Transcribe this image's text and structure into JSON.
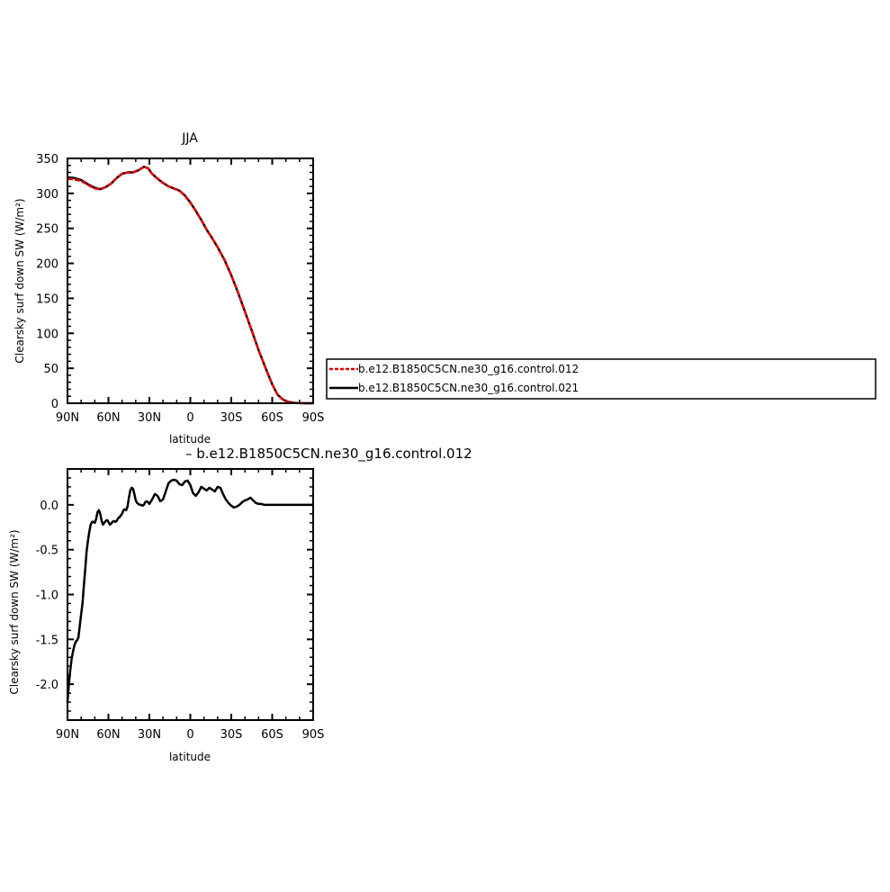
{
  "chart_data": [
    {
      "type": "line",
      "title": "JJA",
      "xlabel": "latitude",
      "ylabel": "Clearsky surf down SW (W/m²)",
      "xlim": [
        90,
        -90
      ],
      "ylim": [
        0,
        350
      ],
      "xticks": [
        90,
        60,
        30,
        0,
        -30,
        -60,
        -90
      ],
      "xtick_labels": [
        "90N",
        "60N",
        "30N",
        "0",
        "30S",
        "60S",
        "90S"
      ],
      "yticks": [
        0,
        50,
        100,
        150,
        200,
        250,
        300,
        350
      ],
      "ytick_labels": [
        "0",
        "50",
        "100",
        "150",
        "200",
        "250",
        "300",
        "350"
      ],
      "legend": "right",
      "series": [
        {
          "name": "b.e12.B1850C5CN.ne30_g16.control.012",
          "color": "#e00000",
          "dash": "dashed",
          "x": [
            90,
            85,
            80,
            75,
            70,
            66,
            62,
            58,
            54,
            50,
            46,
            42,
            38,
            34,
            31,
            28,
            24,
            20,
            16,
            12,
            8,
            4,
            0,
            -4,
            -8,
            -12,
            -16,
            -20,
            -25,
            -30,
            -35,
            -40,
            -45,
            -50,
            -55,
            -60,
            -64,
            -68,
            -72,
            -75,
            -78,
            -81,
            -84,
            -87,
            -90
          ],
          "values": [
            321,
            320,
            318,
            312,
            307,
            306,
            309,
            314,
            322,
            328,
            330,
            330,
            333,
            338,
            336,
            328,
            321,
            315,
            310,
            307,
            304,
            297,
            287,
            275,
            262,
            248,
            236,
            223,
            205,
            183,
            158,
            131,
            104,
            76,
            51,
            27,
            12,
            5,
            2,
            0.8,
            0.3,
            0.1,
            0,
            0,
            0
          ]
        },
        {
          "name": "b.e12.B1850C5CN.ne30_g16.control.021",
          "color": "#000000",
          "dash": "solid",
          "x": [
            90,
            85,
            80,
            75,
            70,
            66,
            62,
            58,
            54,
            50,
            46,
            42,
            38,
            34,
            31,
            28,
            24,
            20,
            16,
            12,
            8,
            4,
            0,
            -4,
            -8,
            -12,
            -16,
            -20,
            -25,
            -30,
            -35,
            -40,
            -45,
            -50,
            -55,
            -60,
            -64,
            -68,
            -72,
            -75,
            -78,
            -81,
            -84,
            -87,
            -90
          ],
          "values": [
            323,
            322,
            319,
            313,
            308,
            306,
            309,
            314,
            322,
            328,
            330,
            330,
            333,
            338,
            336,
            328,
            321,
            315,
            310,
            307,
            304,
            297,
            287,
            275,
            262,
            248,
            236,
            223,
            205,
            183,
            158,
            131,
            104,
            76,
            51,
            27,
            12,
            5,
            2,
            0.8,
            0.3,
            0.1,
            0,
            0,
            0
          ]
        }
      ]
    },
    {
      "type": "line",
      "title": "– b.e12.B1850C5CN.ne30_g16.control.012",
      "xlabel": "latitude",
      "ylabel": "Clearsky surf down SW (W/m²)",
      "xlim": [
        90,
        -90
      ],
      "ylim": [
        -2.4,
        0.4
      ],
      "xticks": [
        90,
        60,
        30,
        0,
        -30,
        -60,
        -90
      ],
      "xtick_labels": [
        "90N",
        "60N",
        "30N",
        "0",
        "30S",
        "60S",
        "90S"
      ],
      "yticks": [
        -2.0,
        -1.5,
        -1.0,
        -0.5,
        0.0
      ],
      "ytick_labels": [
        "-2.0",
        "-1.5",
        "-1.0",
        "-0.5",
        "0.0"
      ],
      "series": [
        {
          "name": "",
          "color": "#000000",
          "dash": "solid",
          "x": [
            90,
            89,
            88,
            87,
            86,
            85,
            84,
            83,
            82,
            81,
            80,
            79,
            78,
            77,
            76,
            75,
            74,
            73,
            72,
            71,
            70,
            69,
            68,
            67,
            66,
            65,
            64,
            63,
            62,
            61,
            60,
            59,
            58,
            57,
            56,
            55,
            54,
            53,
            52,
            51,
            50,
            49,
            48,
            47,
            46,
            45,
            44,
            43,
            42,
            41,
            40,
            39,
            38,
            37,
            36,
            35,
            34,
            33,
            32,
            31,
            30,
            28,
            26,
            24,
            22,
            20,
            18,
            16,
            14,
            12,
            10,
            8,
            6,
            4,
            2,
            0,
            -2,
            -4,
            -6,
            -8,
            -10,
            -12,
            -14,
            -16,
            -18,
            -20,
            -22,
            -24,
            -26,
            -28,
            -30,
            -32,
            -34,
            -36,
            -38,
            -40,
            -42,
            -44,
            -46,
            -48,
            -50,
            -52,
            -54,
            -56,
            -58,
            -60,
            -62,
            -64,
            -66,
            -68,
            -70,
            -72,
            -75,
            -80,
            -85,
            -90
          ],
          "values": [
            -2.2,
            -2.0,
            -1.85,
            -1.72,
            -1.64,
            -1.57,
            -1.53,
            -1.51,
            -1.48,
            -1.35,
            -1.22,
            -1.1,
            -0.9,
            -0.72,
            -0.52,
            -0.4,
            -0.3,
            -0.22,
            -0.19,
            -0.19,
            -0.2,
            -0.16,
            -0.08,
            -0.06,
            -0.1,
            -0.18,
            -0.22,
            -0.2,
            -0.18,
            -0.17,
            -0.19,
            -0.22,
            -0.21,
            -0.19,
            -0.18,
            -0.19,
            -0.18,
            -0.15,
            -0.14,
            -0.12,
            -0.1,
            -0.06,
            -0.05,
            -0.06,
            -0.02,
            0.08,
            0.16,
            0.19,
            0.18,
            0.12,
            0.05,
            0.02,
            0.01,
            0.0,
            0.0,
            -0.01,
            0.0,
            0.03,
            0.04,
            0.03,
            0.01,
            0.06,
            0.12,
            0.1,
            0.04,
            0.06,
            0.15,
            0.24,
            0.27,
            0.28,
            0.27,
            0.23,
            0.22,
            0.26,
            0.27,
            0.22,
            0.13,
            0.1,
            0.14,
            0.2,
            0.18,
            0.16,
            0.19,
            0.17,
            0.15,
            0.2,
            0.19,
            0.12,
            0.06,
            0.02,
            -0.01,
            -0.03,
            -0.02,
            0.0,
            0.03,
            0.05,
            0.06,
            0.08,
            0.05,
            0.02,
            0.01,
            0.01,
            0.0,
            0.0,
            0.0,
            0.0,
            0.0,
            0.0,
            0.0,
            0.0,
            0.0,
            0.0,
            0.0,
            0.0,
            0.0,
            0.0
          ]
        }
      ]
    }
  ]
}
